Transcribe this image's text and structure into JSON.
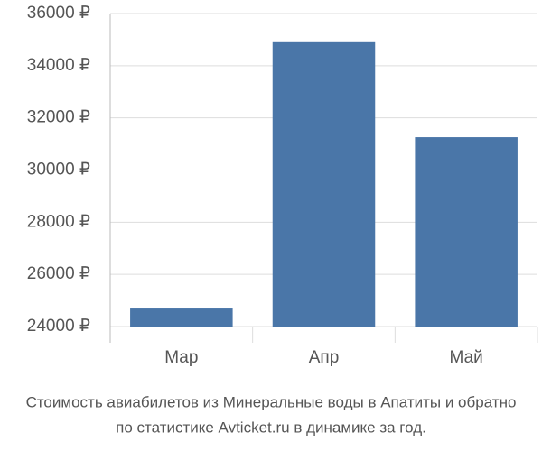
{
  "chart_data": {
    "type": "bar",
    "title": [
      "Стоимость авиабилетов из Минеральные воды в Апатиты и обратно",
      "по статистике Avticket.ru в динамике за год."
    ],
    "categories": [
      "Мар",
      "Апр",
      "Май"
    ],
    "values": [
      24690,
      34900,
      31260
    ],
    "color": "#4a76a8",
    "ylim": [
      24000,
      36000
    ],
    "yticks": [
      {
        "value": 24000,
        "label": "24000 ₽"
      },
      {
        "value": 26000,
        "label": "26000 ₽"
      },
      {
        "value": 28000,
        "label": "28000 ₽"
      },
      {
        "value": 30000,
        "label": "30000 ₽"
      },
      {
        "value": 32000,
        "label": "32000 ₽"
      },
      {
        "value": 34000,
        "label": "34000 ₽"
      },
      {
        "value": 36000,
        "label": "36000 ₽"
      }
    ],
    "grid": true
  }
}
